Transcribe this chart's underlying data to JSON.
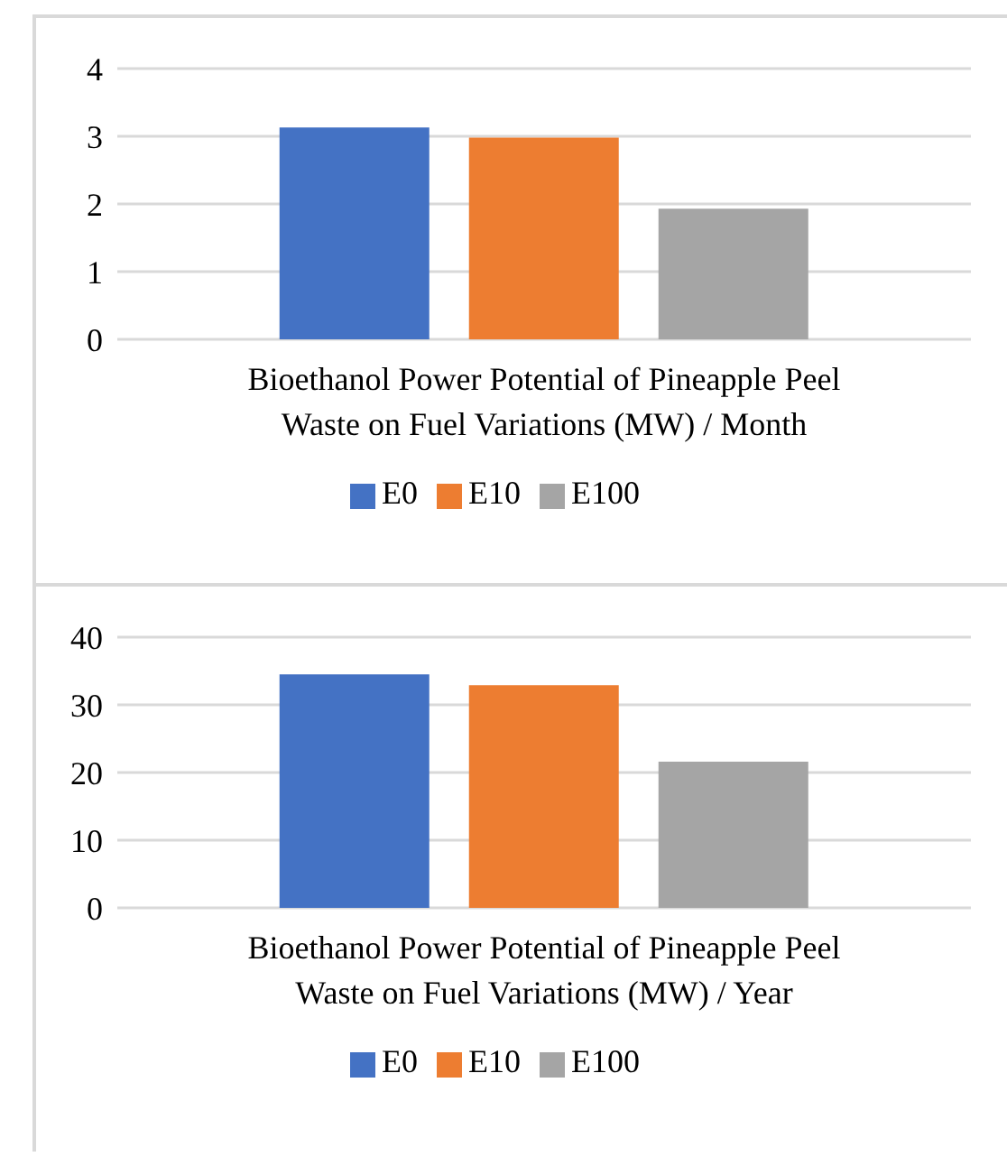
{
  "chart_data": [
    {
      "type": "bar",
      "xlabel": "Bioethanol Power Potential of Pineapple Peel Waste on Fuel Variations (MW) / Month",
      "categories": [
        null
      ],
      "series": [
        {
          "name": "E0",
          "color": "#4472c4",
          "values": [
            3.13
          ]
        },
        {
          "name": "E10",
          "color": "#ed7d31",
          "values": [
            2.98
          ]
        },
        {
          "name": "E100",
          "color": "#a5a5a5",
          "values": [
            1.93
          ]
        }
      ],
      "ylim": [
        0,
        4
      ],
      "yticks": [
        0,
        1,
        2,
        3,
        4
      ],
      "grid": "y",
      "legend": "bottom"
    },
    {
      "type": "bar",
      "xlabel": "Bioethanol Power Potential of Pineapple Peel Waste on Fuel Variations (MW) / Year",
      "categories": [
        null
      ],
      "series": [
        {
          "name": "E0",
          "color": "#4472c4",
          "values": [
            34.5
          ]
        },
        {
          "name": "E10",
          "color": "#ed7d31",
          "values": [
            32.9
          ]
        },
        {
          "name": "E100",
          "color": "#a5a5a5",
          "values": [
            21.6
          ]
        }
      ],
      "ylim": [
        0,
        40
      ],
      "yticks": [
        0,
        10,
        20,
        30,
        40
      ],
      "grid": "y",
      "legend": "bottom"
    }
  ]
}
